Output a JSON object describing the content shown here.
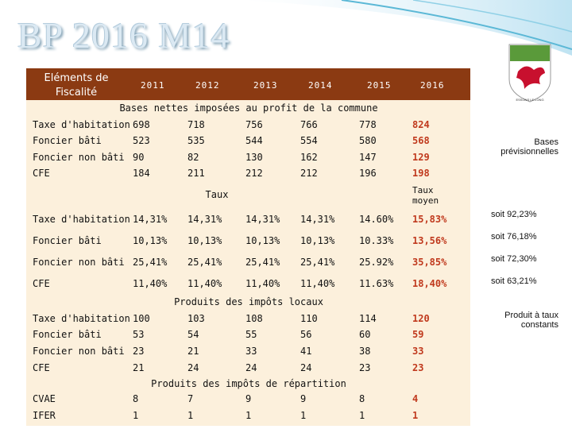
{
  "header": {
    "title": "BP 2016 M14",
    "col_label": "Eléments de Fiscalité",
    "years": [
      "2011",
      "2012",
      "2013",
      "2014",
      "2015",
      "2016"
    ],
    "logo_text": "ESSONS LE LONG"
  },
  "sections": [
    {
      "title": "Bases nettes imposées au profit de la commune",
      "note": "Bases prévisionnelles",
      "rows": [
        {
          "label": "Taxe d'habitation",
          "values": [
            "698",
            "718",
            "756",
            "766",
            "778",
            "824"
          ]
        },
        {
          "label": "Foncier bâti",
          "values": [
            "523",
            "535",
            "544",
            "554",
            "580",
            "568"
          ]
        },
        {
          "label": "Foncier non bâti",
          "values": [
            "90",
            "82",
            "130",
            "162",
            "147",
            "129"
          ]
        },
        {
          "label": "CFE",
          "values": [
            "184",
            "211",
            "212",
            "212",
            "196",
            "198"
          ]
        }
      ]
    },
    {
      "title": "Taux",
      "subtitle": "Taux moyen",
      "rows": [
        {
          "label": "Taxe d'habitation",
          "values": [
            "14,31%",
            "14,31%",
            "14,31%",
            "14,31%",
            "14.60%",
            "15,83%"
          ],
          "note": "soit 92,23%"
        },
        {
          "label": "Foncier bâti",
          "values": [
            "10,13%",
            "10,13%",
            "10,13%",
            "10,13%",
            "10.33%",
            "13,56%"
          ],
          "note": "soit 76,18%"
        },
        {
          "label": "Foncier non bâti",
          "values": [
            "25,41%",
            "25,41%",
            "25,41%",
            "25,41%",
            "25.92%",
            "35,85%"
          ],
          "note": "soit 72,30%"
        },
        {
          "label": "CFE",
          "values": [
            "11,40%",
            "11,40%",
            "11,40%",
            "11,40%",
            "11.63%",
            "18,40%"
          ],
          "note": "soit 63,21%"
        }
      ]
    },
    {
      "title": "Produits des impôts locaux",
      "note": "Produit à taux constants",
      "rows": [
        {
          "label": "Taxe d'habitation",
          "values": [
            "100",
            "103",
            "108",
            "110",
            "114",
            "120"
          ]
        },
        {
          "label": "Foncier bâti",
          "values": [
            "53",
            "54",
            "55",
            "56",
            "60",
            "59"
          ]
        },
        {
          "label": "Foncier non bâti",
          "values": [
            "23",
            "21",
            "33",
            "41",
            "38",
            "33"
          ]
        },
        {
          "label": "CFE",
          "values": [
            "21",
            "24",
            "24",
            "24",
            "23",
            "23"
          ]
        }
      ]
    },
    {
      "title": "Produits des impôts de répartition",
      "rows": [
        {
          "label": "CVAE",
          "values": [
            "8",
            "7",
            "9",
            "9",
            "8",
            "4"
          ]
        },
        {
          "label": "IFER",
          "values": [
            "1",
            "1",
            "1",
            "1",
            "1",
            "1"
          ]
        }
      ]
    }
  ]
}
